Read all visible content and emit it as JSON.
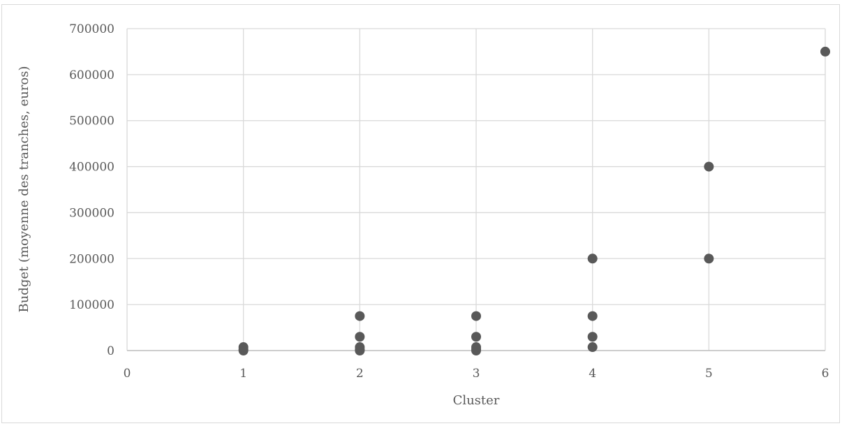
{
  "chart_data": {
    "type": "scatter",
    "title": "",
    "xlabel": "Cluster",
    "ylabel": "Budget (moyenne des tranches, euros)",
    "xlim": [
      0,
      6
    ],
    "ylim": [
      0,
      700000
    ],
    "xticks": [
      0,
      1,
      2,
      3,
      4,
      5,
      6
    ],
    "yticks": [
      0,
      100000,
      200000,
      300000,
      400000,
      500000,
      600000,
      700000
    ],
    "grid": true,
    "legend": "none",
    "marker_color": "#595959",
    "grid_color": "#d9d9d9",
    "series": [
      {
        "points": [
          {
            "x": 1,
            "y": 0
          },
          {
            "x": 1,
            "y": 2500
          },
          {
            "x": 1,
            "y": 7500
          },
          {
            "x": 2,
            "y": 0
          },
          {
            "x": 2,
            "y": 2500
          },
          {
            "x": 2,
            "y": 7500
          },
          {
            "x": 2,
            "y": 30000
          },
          {
            "x": 2,
            "y": 75000
          },
          {
            "x": 3,
            "y": 0
          },
          {
            "x": 3,
            "y": 2500
          },
          {
            "x": 3,
            "y": 7500
          },
          {
            "x": 3,
            "y": 30000
          },
          {
            "x": 3,
            "y": 75000
          },
          {
            "x": 4,
            "y": 7500
          },
          {
            "x": 4,
            "y": 30000
          },
          {
            "x": 4,
            "y": 75000
          },
          {
            "x": 4,
            "y": 200000
          },
          {
            "x": 5,
            "y": 200000
          },
          {
            "x": 5,
            "y": 400000
          },
          {
            "x": 6,
            "y": 650000
          }
        ]
      }
    ]
  }
}
